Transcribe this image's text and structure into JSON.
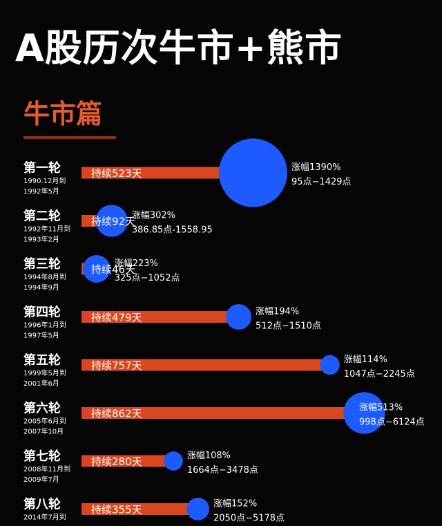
{
  "title": "A股历次牛市+熊市",
  "section": "牛市篇",
  "colors": {
    "bar": "#d9471f",
    "bubble": "#1e5bff",
    "title": "#ffffff",
    "section": "#e65a2b",
    "background": "#050505"
  },
  "chart_data": {
    "type": "bar",
    "subtype": "bar with proportional bubbles",
    "rounds": [
      {
        "name": "第一轮",
        "period": [
          "1990.12月到",
          "1992年5月"
        ],
        "days": 523,
        "duration_label": "持续523天",
        "gain_pct": 1390,
        "gain_label": "涨幅1390%",
        "points_label": "95点−1429点"
      },
      {
        "name": "第二轮",
        "period": [
          "1992年11月到",
          "1993年2月"
        ],
        "days": 92,
        "duration_label": "持续92天",
        "gain_pct": 302,
        "gain_label": "涨幅302%",
        "points_label": "386.85点-1558.95"
      },
      {
        "name": "第三轮",
        "period": [
          "1994年8月到",
          "1994年9月"
        ],
        "days": 46,
        "duration_label": "持续46天",
        "gain_pct": 223,
        "gain_label": "涨幅223%",
        "points_label": "325点−1052点"
      },
      {
        "name": "第四轮",
        "period": [
          "1996年1月到",
          "1997年5月"
        ],
        "days": 479,
        "duration_label": "持续479天",
        "gain_pct": 194,
        "gain_label": "涨幅194%",
        "points_label": "512点−1510点"
      },
      {
        "name": "第五轮",
        "period": [
          "1999年5月到",
          "2001年6月"
        ],
        "days": 757,
        "duration_label": "持续757天",
        "gain_pct": 114,
        "gain_label": "涨幅114%",
        "points_label": "1047点−2245点"
      },
      {
        "name": "第六轮",
        "period": [
          "2005年6月到",
          "2007年10月"
        ],
        "days": 862,
        "duration_label": "持续862天",
        "gain_pct": 513,
        "gain_label": "涨幅513%",
        "points_label": "998点−6124点"
      },
      {
        "name": "第七轮",
        "period": [
          "2008年11月到",
          "2009年7月"
        ],
        "days": 280,
        "duration_label": "持续280天",
        "gain_pct": 108,
        "gain_label": "涨幅108%",
        "points_label": "1664点−3478点"
      },
      {
        "name": "第八轮",
        "period": [
          "2014年7月到",
          ""
        ],
        "days": 355,
        "duration_label": "持续355天",
        "gain_pct": 152,
        "gain_label": "涨幅152%",
        "points_label": "2050点−5178点"
      }
    ]
  }
}
